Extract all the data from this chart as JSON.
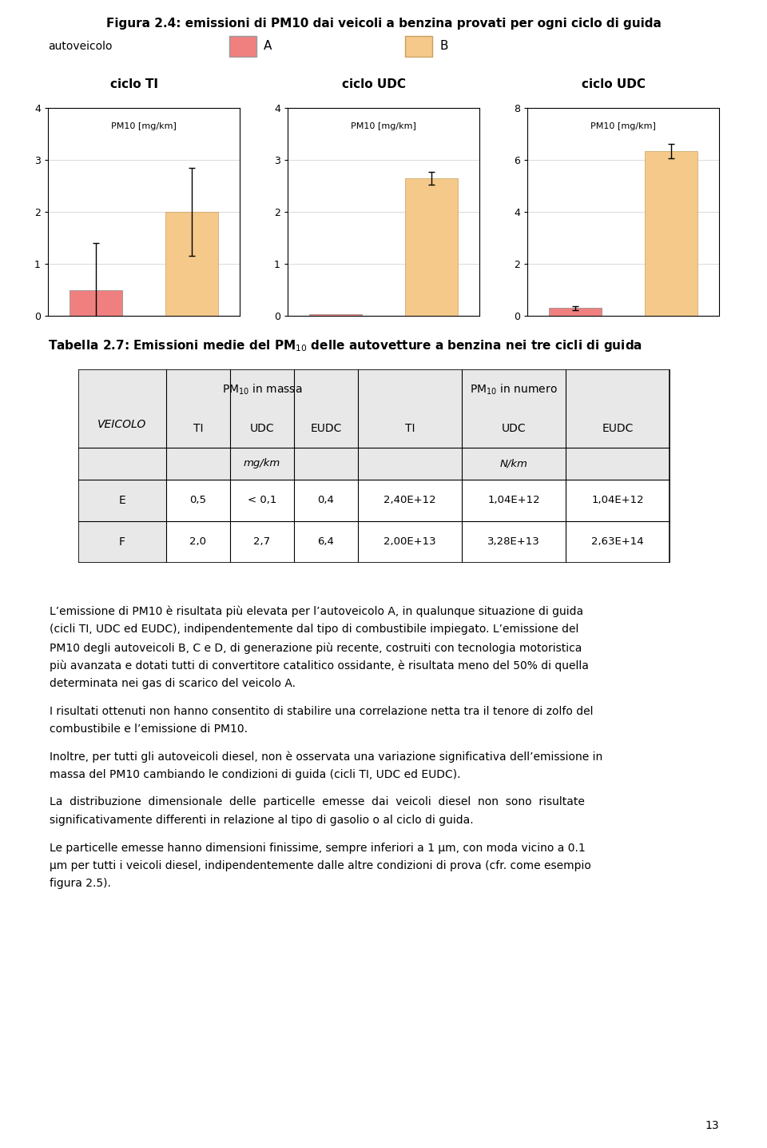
{
  "figure_title": "Figura 2.4: emissioni di PM10 dai veicoli a benzina provati per ogni ciclo di guida",
  "legend_label": "autoveicolo",
  "legend_A": "A",
  "legend_B": "B",
  "color_A": "#F08080",
  "color_B": "#F5C98A",
  "chart_labels": [
    "ciclo TI",
    "ciclo UDC",
    "ciclo UDC"
  ],
  "chart_ylabel": "PM10 [mg/km]",
  "chart1": {
    "bar_A": 0.5,
    "bar_A_err": 0.9,
    "bar_B": 2.0,
    "bar_B_err": 0.85,
    "ylim": [
      0,
      4
    ],
    "yticks": [
      0,
      1,
      2,
      3,
      4
    ]
  },
  "chart2": {
    "bar_A": 0.0,
    "bar_A_err": 0.0,
    "bar_B": 2.65,
    "bar_B_err": 0.12,
    "ylim": [
      0,
      4
    ],
    "yticks": [
      0,
      1,
      2,
      3,
      4
    ]
  },
  "chart3": {
    "bar_A": 0.3,
    "bar_A_err": 0.08,
    "bar_B": 6.35,
    "bar_B_err": 0.28,
    "ylim": [
      0,
      8
    ],
    "yticks": [
      0,
      2,
      4,
      6,
      8
    ]
  },
  "table_data": [
    [
      "E",
      "0,5",
      "< 0,1",
      "0,4",
      "2,40E+12",
      "1,04E+12",
      "1,04E+12"
    ],
    [
      "F",
      "2,0",
      "2,7",
      "6,4",
      "2,00E+13",
      "3,28E+13",
      "2,63E+14"
    ]
  ],
  "para1_lines": [
    "L’emissione di PM10 è risultata più elevata per l’autoveicolo A, in qualunque situazione di guida",
    "(cicli TI, UDC ed EUDC), indipendentemente dal tipo di combustibile impiegato. L’emissione del",
    "PM10 degli autoveicoli B, C e D, di generazione più recente, costruiti con tecnologia motoristica",
    "più avanzata e dotati tutti di convertitore catalitico ossidante, è risultata meno del 50% di quella",
    "determinata nei gas di scarico del veicolo A."
  ],
  "para2_lines": [
    "I risultati ottenuti non hanno consentito di stabilire una correlazione netta tra il tenore di zolfo del",
    "combustibile e l’emissione di PM10."
  ],
  "para3_lines": [
    "Inoltre, per tutti gli autoveicoli diesel, non è osservata una variazione significativa dell’emissione in",
    "massa del PM10 cambiando le condizioni di guida (cicli TI, UDC ed EUDC)."
  ],
  "para4_lines": [
    "La  distribuzione  dimensionale  delle  particelle  emesse  dai  veicoli  diesel  non  sono  risultate",
    "significativamente differenti in relazione al tipo di gasolio o al ciclo di guida."
  ],
  "para5_lines": [
    "Le particelle emesse hanno dimensioni finissime, sempre inferiori a 1 μm, con moda vicino a 0.1",
    "μm per tutti i veicoli diesel, indipendentemente dalle altre condizioni di prova (cfr. come esempio",
    "figura 2.5)."
  ],
  "page_number": "13"
}
